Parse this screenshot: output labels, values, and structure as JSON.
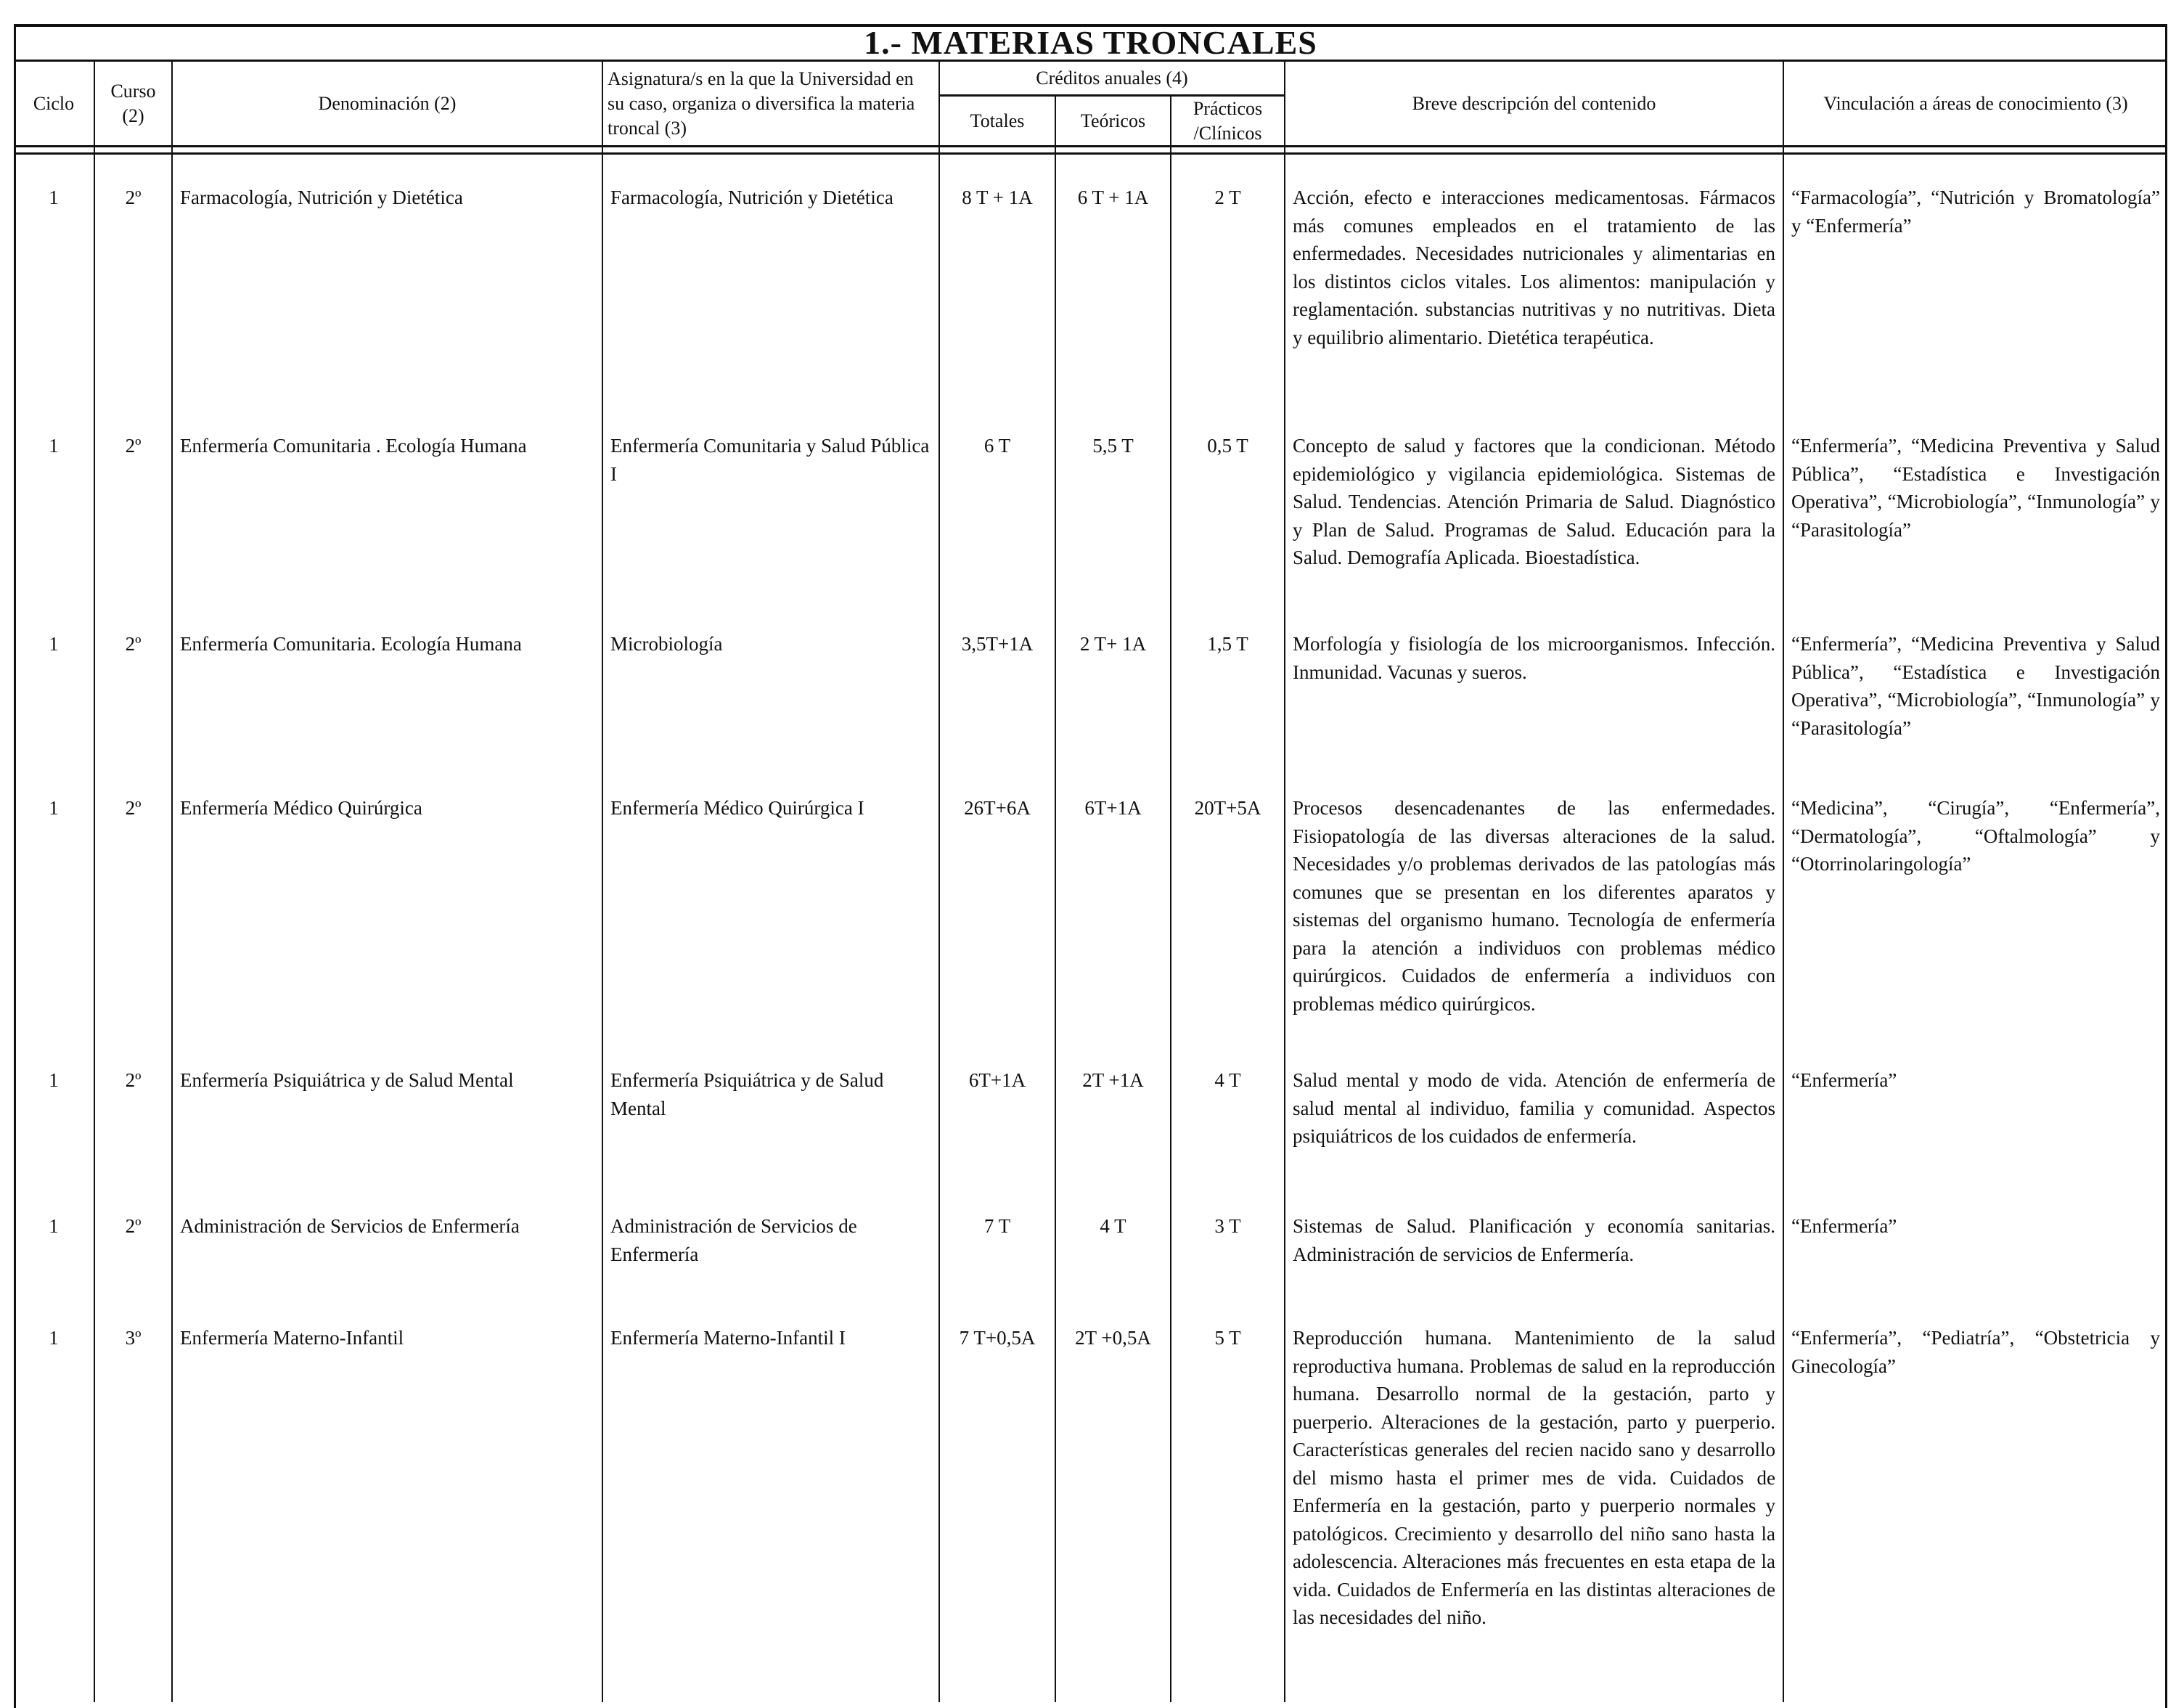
{
  "title": "1.- MATERIAS TRONCALES",
  "headers": {
    "ciclo": "Ciclo",
    "curso": "Curso (2)",
    "denominacion": "Denominación (2)",
    "asignatura": "Asignatura/s en la que la Universidad en su caso, organiza o diversifica la materia troncal (3)",
    "creditos": "Créditos anuales (4)",
    "totales": "Totales",
    "teoricos": "Teóricos",
    "practicos": "Prácticos /Clínicos",
    "descripcion": "Breve descripción del contenido",
    "vinculacion": "Vinculación a áreas de conocimiento (3)"
  },
  "rows": [
    {
      "ciclo": "1",
      "curso": "2º",
      "denominacion": "Farmacología, Nutrición y Dietética",
      "asignatura": "Farmacología, Nutrición y Dietética",
      "totales": "8 T + 1A",
      "teoricos": "6 T + 1A",
      "practicos": "2 T",
      "descripcion": "Acción, efecto e interacciones medicamentosas. Fármacos más comunes empleados en el tratamiento de las enfermedades. Necesidades nutricionales y alimentarias en los distintos ciclos vitales. Los alimentos: manipulación y reglamentación. substancias nutritivas y no nutritivas. Dieta y equilibrio alimentario. Dietética terapéutica.",
      "vinculacion": "“Farmacología”, “Nutrición y Bromatología” y “Enfermería”"
    },
    {
      "ciclo": "1",
      "curso": "2º",
      "denominacion": "Enfermería Comunitaria . Ecología Humana",
      "asignatura": "Enfermería Comunitaria y Salud Pública I",
      "totales": "6 T",
      "teoricos": "5,5 T",
      "practicos": "0,5 T",
      "descripcion": "Concepto de salud y factores que la condicionan. Método epidemiológico y vigilancia epidemiológica. Sistemas de Salud. Tendencias. Atención Primaria de Salud. Diagnóstico y Plan de Salud. Programas de Salud. Educación para la Salud. Demografía Aplicada. Bioestadística.",
      "vinculacion": "“Enfermería”, “Medicina Preventiva y Salud Pública”, “Estadística e Investigación Operativa”, “Microbiología”, “Inmunología” y “Parasitología”"
    },
    {
      "ciclo": "1",
      "curso": "2º",
      "denominacion": "Enfermería Comunitaria. Ecología Humana",
      "asignatura": "Microbiología",
      "totales": "3,5T+1A",
      "teoricos": "2 T+ 1A",
      "practicos": "1,5 T",
      "descripcion": "Morfología y fisiología de los microorganismos. Infección. Inmunidad. Vacunas y sueros.",
      "vinculacion": "“Enfermería”, “Medicina Preventiva y Salud Pública”, “Estadística e Investigación Operativa”, “Microbiología”, “Inmunología” y “Parasitología”"
    },
    {
      "ciclo": "1",
      "curso": "2º",
      "denominacion": "Enfermería Médico Quirúrgica",
      "asignatura": "Enfermería Médico Quirúrgica I",
      "totales": "26T+6A",
      "teoricos": "6T+1A",
      "practicos": "20T+5A",
      "descripcion": "Procesos desencadenantes de las enfermedades. Fisiopatología de las diversas alteraciones de la salud. Necesidades y/o problemas derivados de las patologías más comunes que se presentan en los diferentes aparatos y sistemas del organismo humano. Tecnología de enfermería para la atención a individuos con problemas médico quirúrgicos. Cuidados de enfermería a individuos con problemas médico quirúrgicos.",
      "vinculacion": "“Medicina”, “Cirugía”, “Enfermería”, “Dermatología”, “Oftalmología” y “Otorrinolaringología”"
    },
    {
      "ciclo": "1",
      "curso": "2º",
      "denominacion": "Enfermería Psiquiátrica y de Salud Mental",
      "asignatura": "Enfermería Psiquiátrica y de Salud Mental",
      "totales": "6T+1A",
      "teoricos": "2T +1A",
      "practicos": "4 T",
      "descripcion": "Salud mental y modo de vida. Atención de enfermería de salud mental al individuo, familia y comunidad. Aspectos psiquiátricos de los cuidados de enfermería.",
      "vinculacion": "“Enfermería”"
    },
    {
      "ciclo": "1",
      "curso": "2º",
      "denominacion": "Administración de Servicios de Enfermería",
      "asignatura": "Administración de Servicios de Enfermería",
      "totales": "7 T",
      "teoricos": "4 T",
      "practicos": "3 T",
      "descripcion": "Sistemas de Salud. Planificación y economía sanitarias. Administración de servicios de Enfermería.",
      "vinculacion": "“Enfermería”"
    },
    {
      "ciclo": "1",
      "curso": "3º",
      "denominacion": "Enfermería Materno-Infantil",
      "asignatura": "Enfermería Materno-Infantil I",
      "totales": "7 T+0,5A",
      "teoricos": "2T +0,5A",
      "practicos": "5 T",
      "descripcion": "Reproducción humana. Mantenimiento de la salud reproductiva humana. Problemas de salud en la reproducción humana. Desarrollo normal de la gestación, parto y puerperio. Alteraciones de la gestación, parto y puerperio. Características generales del recien nacido sano y desarrollo del mismo hasta el primer mes de vida. Cuidados de Enfermería en la gestación, parto y puerperio normales y patológicos. Crecimiento y desarrollo del niño sano hasta la adolescencia. Alteraciones más frecuentes en esta etapa de la vida. Cuidados de Enfermería en las distintas alteraciones de las necesidades del niño.",
      "vinculacion": "“Enfermería”, “Pediatría”, “Obstetricia y Ginecología”"
    }
  ]
}
